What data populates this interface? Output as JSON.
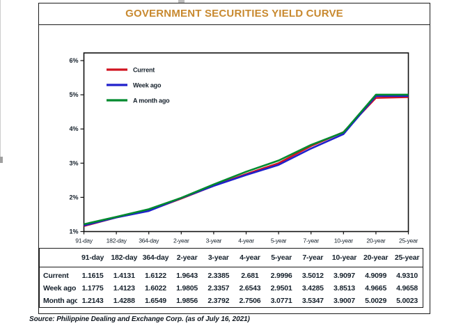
{
  "title": "GOVERNMENT SECURITIES YIELD CURVE",
  "source": "Source: Philippine Dealing and Exchange Corp. (as of July 16, 2021)",
  "colors": {
    "title": "#c8892f",
    "current": "#d11420",
    "week_ago": "#2020cc",
    "month_ago": "#008a2e",
    "axis": "#111111",
    "label_text": "#15202b"
  },
  "chart_data": {
    "type": "line",
    "title": "",
    "xlabel": "",
    "ylabel": "",
    "categories": [
      "91-day",
      "182-day",
      "364-day",
      "2-year",
      "3-year",
      "4-year",
      "5-year",
      "7-year",
      "10-year",
      "20-year",
      "25-year"
    ],
    "series": [
      {
        "name": "Current",
        "color": "#d11420",
        "values": [
          1.1615,
          1.4131,
          1.6122,
          1.9643,
          2.3385,
          2.681,
          2.9996,
          3.5012,
          3.9097,
          4.9099,
          4.931
        ]
      },
      {
        "name": "Week ago",
        "color": "#2020cc",
        "values": [
          1.1775,
          1.4123,
          1.6022,
          1.9805,
          2.3357,
          2.6543,
          2.9501,
          3.4285,
          3.8513,
          4.9665,
          4.9658
        ]
      },
      {
        "name": "A month ago",
        "color": "#008a2e",
        "values": [
          1.2143,
          1.4288,
          1.6549,
          1.9856,
          2.3792,
          2.7506,
          3.0771,
          3.5347,
          3.9007,
          5.0029,
          5.0023
        ]
      }
    ],
    "ylim": [
      1,
      6
    ],
    "yticks": [
      1,
      2,
      3,
      4,
      5,
      6
    ],
    "ytick_suffix": "%",
    "grid": false,
    "legend_position": "top-left"
  },
  "table": {
    "corner_label": "",
    "columns": [
      "91-day",
      "182-day",
      "364-day",
      "2-year",
      "3-year",
      "4-year",
      "5-year",
      "7-year",
      "10-year",
      "20-year",
      "25-year"
    ],
    "rows": [
      {
        "label": "Current",
        "values": [
          "1.1615",
          "1.4131",
          "1.6122",
          "1.9643",
          "2.3385",
          "2.681",
          "2.9996",
          "3.5012",
          "3.9097",
          "4.9099",
          "4.9310"
        ]
      },
      {
        "label": "Week ago",
        "values": [
          "1.1775",
          "1.4123",
          "1.6022",
          "1.9805",
          "2.3357",
          "2.6543",
          "2.9501",
          "3.4285",
          "3.8513",
          "4.9665",
          "4.9658"
        ]
      },
      {
        "label": "Month ago",
        "values": [
          "1.2143",
          "1.4288",
          "1.6549",
          "1.9856",
          "2.3792",
          "2.7506",
          "3.0771",
          "3.5347",
          "3.9007",
          "5.0029",
          "5.0023"
        ]
      }
    ]
  }
}
